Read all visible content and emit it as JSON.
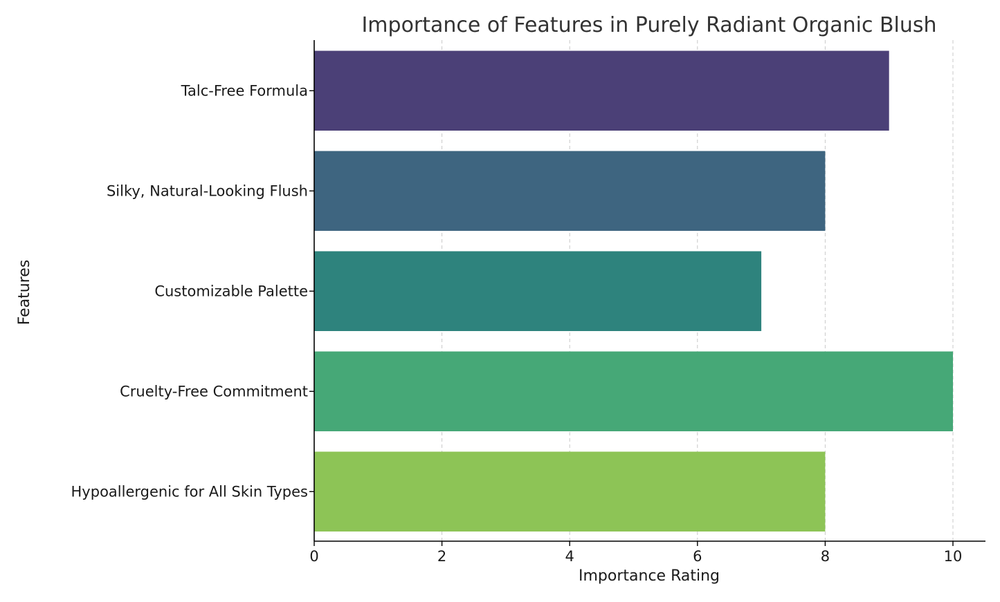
{
  "chart_data": {
    "type": "bar",
    "orientation": "horizontal",
    "title": "Importance of Features in Purely Radiant Organic Blush",
    "xlabel": "Importance Rating",
    "ylabel": "Features",
    "xlim": [
      0,
      10.5
    ],
    "xticks": [
      0,
      2,
      4,
      6,
      8,
      10
    ],
    "grid": "vertical dashed",
    "categories": [
      "Talc-Free Formula",
      "Silky, Natural-Looking Flush",
      "Customizable Palette",
      "Cruelty-Free Commitment",
      "Hypoallergenic for All Skin Types"
    ],
    "values": [
      9,
      8,
      7,
      10,
      8
    ],
    "colors": [
      "#4b4077",
      "#3e6580",
      "#2e837d",
      "#46a877",
      "#8dc456"
    ]
  }
}
